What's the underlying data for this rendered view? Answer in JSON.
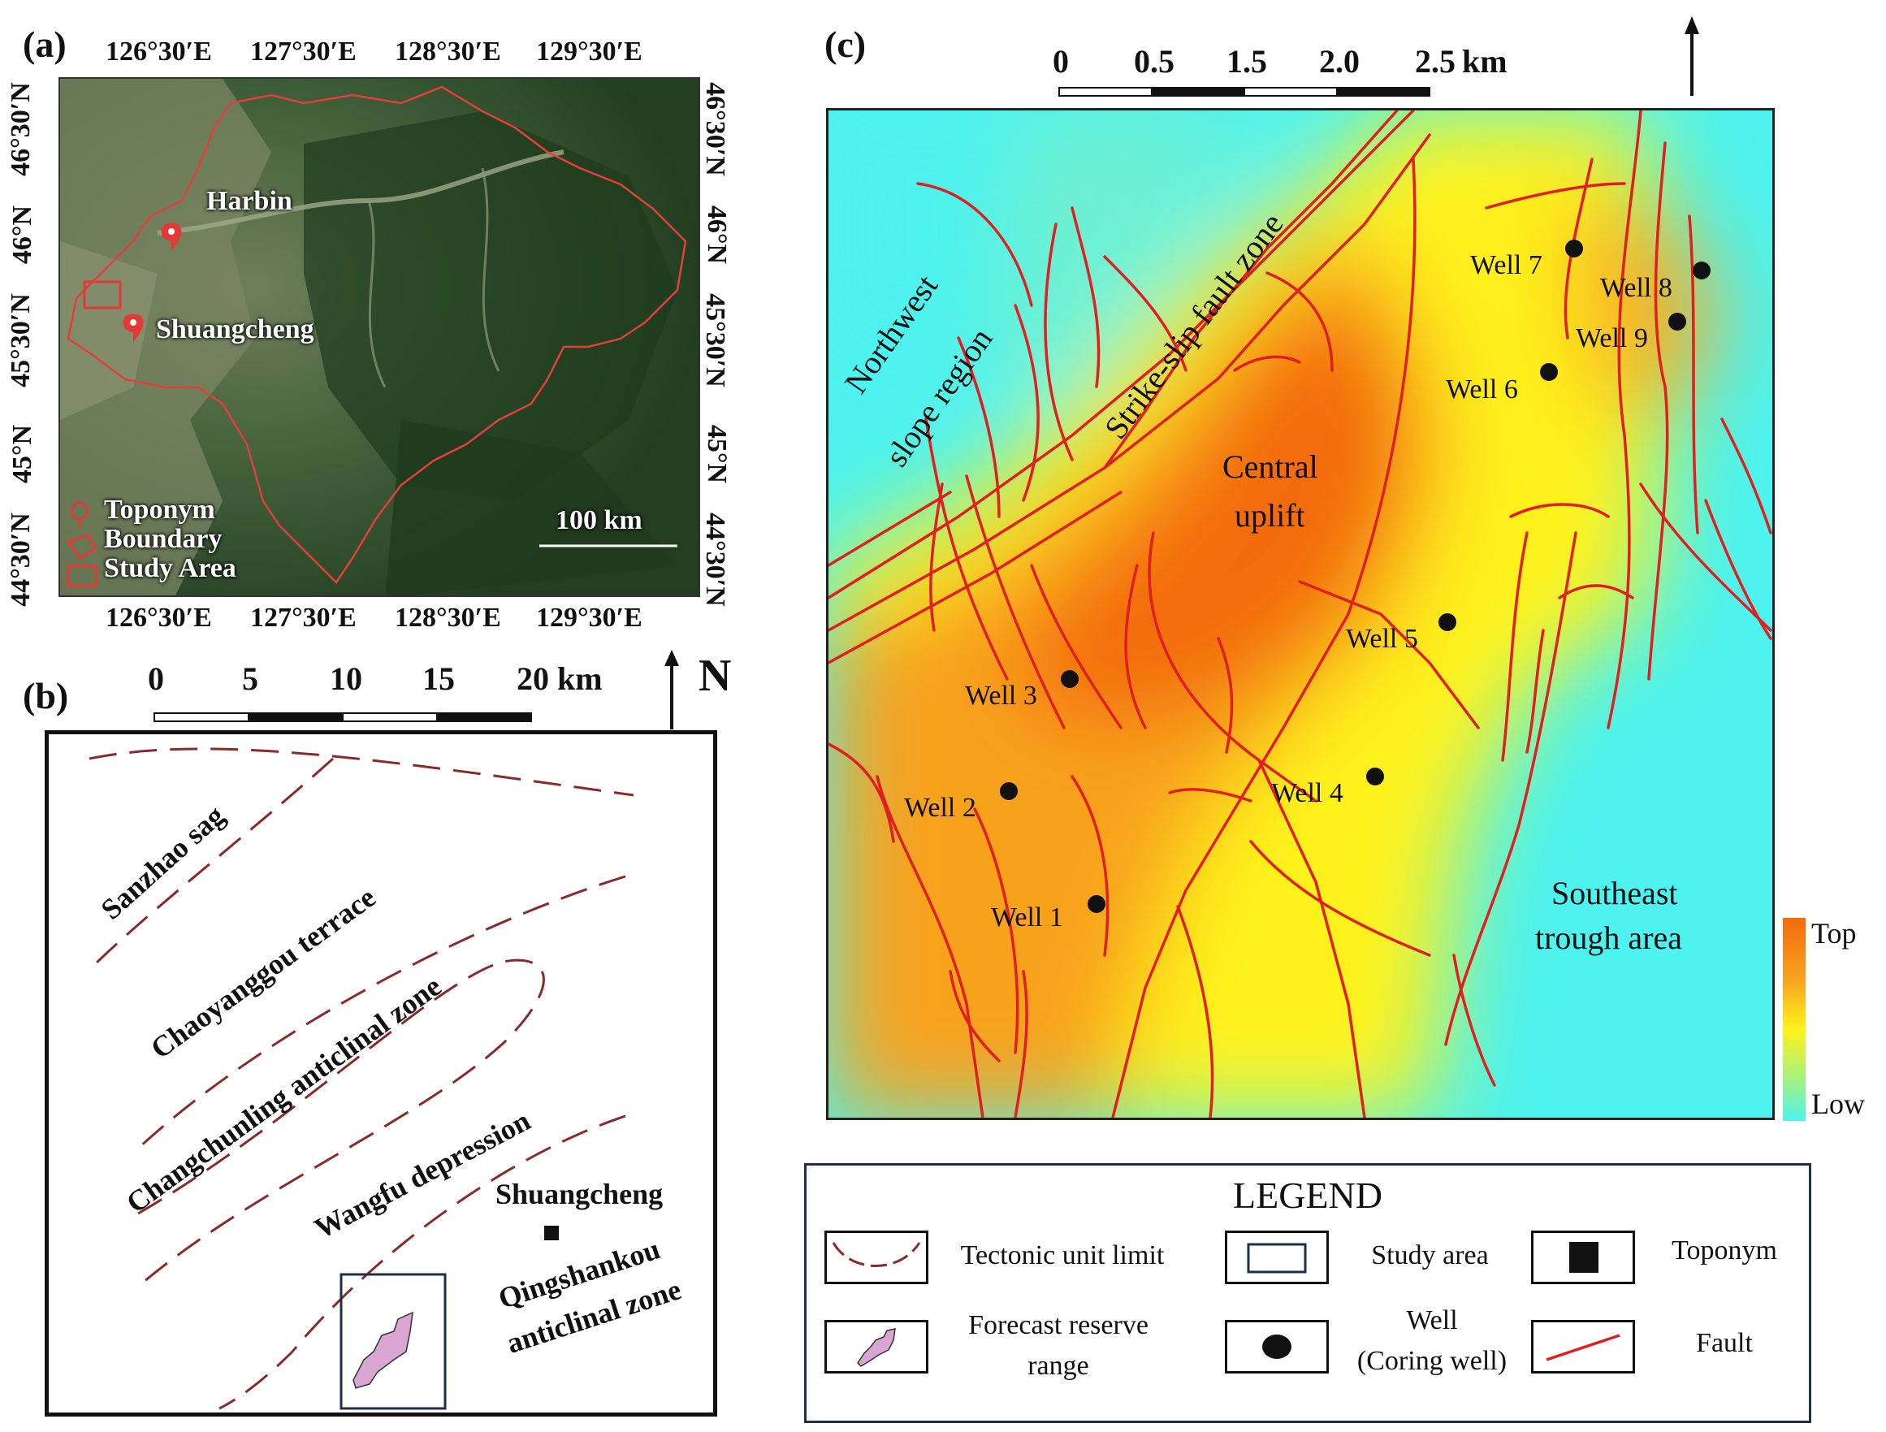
{
  "panels": {
    "a": "(a)",
    "b": "(b)",
    "c": "(c)"
  },
  "panel_a": {
    "top_lon": [
      "126°30′E",
      "127°30′E",
      "128°30′E",
      "129°30′E"
    ],
    "bottom_lon": [
      "126°30′E",
      "127°30′E",
      "128°30′E",
      "129°30′E"
    ],
    "lat": [
      "46°30′N",
      "46°N",
      "45°30′N",
      "45°N",
      "44°30′N"
    ],
    "places": {
      "harbin": "Harbin",
      "shuangcheng": "Shuangcheng"
    },
    "legend": {
      "toponym": "Toponym",
      "boundary": "Boundary",
      "study_area": "Study Area"
    },
    "scale": "100 km",
    "colors": {
      "boundary": "#e0403a",
      "marker": "#e53935"
    }
  },
  "panel_b": {
    "scale": {
      "ticks": [
        "0",
        "5",
        "10",
        "15",
        "20"
      ],
      "unit": "km"
    },
    "north": "N",
    "units": {
      "sanzhao": "Sanzhao sag",
      "chaoyanggou": "Chaoyanggou terrace",
      "changchunling": "Changchunling anticlinal zone",
      "wangfu": "Wangfu depression",
      "qingshankou_1": "Qingshankou",
      "qingshankou_2": "anticlinal zone"
    },
    "toponym": "Shuangcheng",
    "colors": {
      "tectonic_limit": "#8b2a2a",
      "reserve": "#d9a6d4",
      "study_box": "#1d3048"
    }
  },
  "panel_c": {
    "scale": {
      "ticks": [
        "0",
        "0.5",
        "1.5",
        "2.0",
        "2.5"
      ],
      "unit": "km"
    },
    "regions": {
      "northwest_1": "Northwest",
      "northwest_2": "slope region",
      "strike_slip": "Strike-slip fault zone",
      "central_1": "Central",
      "central_2": "uplift",
      "southeast_1": "Southeast",
      "southeast_2": "trough area"
    },
    "wells": [
      "Well 1",
      "Well 2",
      "Well 3",
      "Well 4",
      "Well 5",
      "Well 6",
      "Well 7",
      "Well 8",
      "Well 9"
    ],
    "colorbar": {
      "top": "Top",
      "low": "Low"
    },
    "colors": {
      "fault": "#e02020",
      "high": "#f07010",
      "mid": "#fff21a",
      "low": "#4ef2ee"
    }
  },
  "legend": {
    "title": "LEGEND",
    "items": {
      "tectonic": "Tectonic  unit limit",
      "study": "Study area",
      "toponym": "Toponym",
      "forecast_1": "Forecast reserve",
      "forecast_2": "range",
      "well_1": "Well",
      "well_2": "(Coring well)",
      "fault": "Fault"
    }
  }
}
